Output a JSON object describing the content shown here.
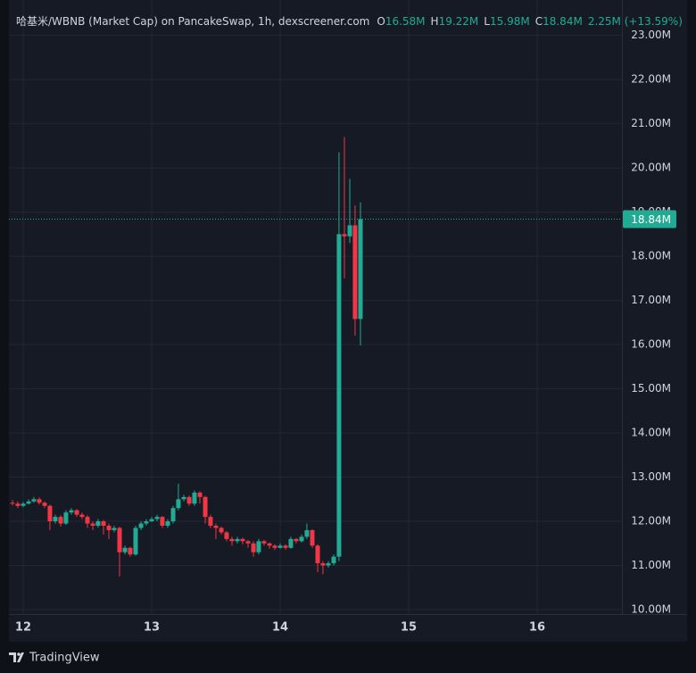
{
  "chart_data": {
    "type": "candlestick",
    "title": "哈基米/WBNB (Market Cap) on PancakeSwap, 1h, dexscreener.com",
    "ohlc_legend": [
      {
        "label": "O",
        "value": "16.58M"
      },
      {
        "label": "H",
        "value": "19.22M"
      },
      {
        "label": "L",
        "value": "15.98M"
      },
      {
        "label": "C",
        "value": "18.84M"
      }
    ],
    "change_label": "2.25M (+13.59%)",
    "footer": "TradingView",
    "up_color": "#22ab94",
    "down_color": "#f23645",
    "grid": true,
    "xlim": [
      11.889,
      16.66
    ],
    "xticks": [
      12,
      13,
      14,
      15,
      16
    ],
    "ylim": [
      9.9,
      23.8
    ],
    "yticks": [
      {
        "value": 10,
        "label": "10.00M"
      },
      {
        "value": 11,
        "label": "11.00M"
      },
      {
        "value": 12,
        "label": "12.00M"
      },
      {
        "value": 13,
        "label": "13.00M"
      },
      {
        "value": 14,
        "label": "14.00M"
      },
      {
        "value": 15,
        "label": "15.00M"
      },
      {
        "value": 16,
        "label": "16.00M"
      },
      {
        "value": 17,
        "label": "17.00M"
      },
      {
        "value": 18,
        "label": "18.00M"
      },
      {
        "value": 19,
        "label": "19.00M"
      },
      {
        "value": 20,
        "label": "20.00M"
      },
      {
        "value": 21,
        "label": "21.00M"
      },
      {
        "value": 22,
        "label": "22.00M"
      },
      {
        "value": 23,
        "label": "23.00M"
      }
    ],
    "last_price": {
      "value": 18.84,
      "label": "18.84M"
    },
    "x": [
      11.917,
      11.958,
      12,
      12.042,
      12.083,
      12.125,
      12.167,
      12.208,
      12.25,
      12.292,
      12.333,
      12.375,
      12.417,
      12.458,
      12.5,
      12.542,
      12.583,
      12.625,
      12.667,
      12.708,
      12.75,
      12.792,
      12.833,
      12.875,
      12.917,
      12.958,
      13,
      13.042,
      13.083,
      13.125,
      13.167,
      13.208,
      13.25,
      13.292,
      13.333,
      13.375,
      13.417,
      13.458,
      13.5,
      13.542,
      13.583,
      13.625,
      13.667,
      13.708,
      13.75,
      13.792,
      13.833,
      13.875,
      13.917,
      13.958,
      14,
      14.042,
      14.083,
      14.125,
      14.167,
      14.208,
      14.25,
      14.292,
      14.333,
      14.375,
      14.417,
      14.458,
      14.5,
      14.542,
      14.583,
      14.625
    ],
    "open": [
      12.42,
      12.4,
      12.35,
      12.4,
      12.45,
      12.5,
      12.42,
      12.35,
      12.0,
      12.1,
      11.95,
      12.2,
      12.25,
      12.15,
      12.1,
      11.95,
      11.9,
      12.0,
      11.9,
      11.8,
      11.85,
      11.3,
      11.4,
      11.25,
      11.85,
      11.95,
      12.0,
      12.05,
      12.1,
      11.9,
      12.0,
      12.3,
      12.5,
      12.55,
      12.4,
      12.65,
      12.55,
      12.1,
      11.9,
      11.85,
      11.75,
      11.6,
      11.55,
      11.6,
      11.55,
      11.5,
      11.3,
      11.55,
      11.5,
      11.45,
      11.4,
      11.45,
      11.4,
      11.6,
      11.55,
      11.65,
      11.8,
      11.45,
      11.05,
      11.0,
      11.05,
      11.2,
      18.5,
      18.45,
      18.7,
      16.58
    ],
    "high": [
      12.48,
      12.45,
      12.44,
      12.5,
      12.55,
      12.54,
      12.45,
      12.38,
      12.15,
      12.14,
      12.25,
      12.3,
      12.28,
      12.2,
      12.14,
      12.0,
      12.05,
      12.03,
      11.95,
      11.9,
      11.88,
      11.45,
      11.42,
      11.9,
      12.0,
      12.05,
      12.1,
      12.15,
      12.12,
      12.05,
      12.35,
      12.85,
      12.6,
      12.58,
      12.7,
      12.68,
      12.58,
      12.15,
      11.95,
      11.88,
      11.78,
      11.65,
      11.65,
      11.63,
      11.58,
      11.55,
      11.6,
      11.58,
      11.52,
      11.48,
      11.5,
      11.48,
      11.65,
      11.62,
      11.7,
      11.95,
      11.82,
      11.48,
      11.1,
      11.1,
      11.25,
      20.35,
      20.7,
      19.75,
      19.15,
      19.22
    ],
    "low": [
      12.36,
      12.3,
      12.32,
      12.38,
      12.42,
      12.38,
      12.3,
      11.8,
      11.95,
      11.88,
      11.92,
      12.15,
      12.1,
      12.05,
      11.85,
      11.8,
      11.86,
      11.7,
      11.6,
      11.75,
      10.75,
      11.25,
      11.2,
      11.22,
      11.8,
      11.9,
      11.98,
      12.0,
      11.85,
      11.85,
      11.95,
      12.25,
      12.45,
      12.35,
      12.35,
      12.4,
      11.95,
      11.85,
      11.6,
      11.7,
      11.55,
      11.45,
      11.5,
      11.48,
      11.4,
      11.2,
      11.25,
      11.45,
      11.38,
      11.35,
      11.38,
      11.35,
      11.38,
      11.5,
      11.52,
      11.6,
      11.4,
      10.85,
      10.8,
      10.95,
      11.0,
      11.1,
      17.5,
      18.3,
      16.2,
      15.98
    ],
    "close": [
      12.4,
      12.35,
      12.4,
      12.45,
      12.5,
      12.42,
      12.35,
      12.0,
      12.1,
      11.95,
      12.2,
      12.25,
      12.15,
      12.1,
      11.95,
      11.9,
      12.0,
      11.9,
      11.8,
      11.85,
      11.3,
      11.4,
      11.25,
      11.85,
      11.95,
      12.0,
      12.05,
      12.1,
      11.9,
      12.0,
      12.3,
      12.5,
      12.55,
      12.4,
      12.65,
      12.55,
      12.1,
      11.9,
      11.85,
      11.75,
      11.6,
      11.55,
      11.6,
      11.55,
      11.5,
      11.3,
      11.55,
      11.5,
      11.45,
      11.4,
      11.45,
      11.4,
      11.6,
      11.55,
      11.65,
      11.8,
      11.45,
      11.05,
      11.0,
      11.05,
      11.2,
      18.5,
      18.45,
      18.7,
      16.58,
      18.84
    ]
  }
}
